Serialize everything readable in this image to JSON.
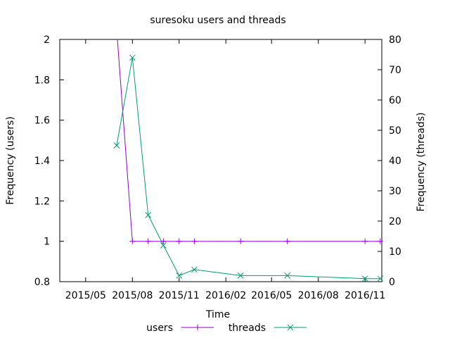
{
  "chart_data": {
    "type": "line",
    "title": "suresoku users and threads",
    "xlabel": "Time",
    "ylabel_left": "Frequency (users)",
    "ylabel_right": "Frequency (threads)",
    "x_ticks": [
      "2015/05",
      "2015/08",
      "2015/11",
      "2016/02",
      "2016/05",
      "2016/08",
      "2016/11"
    ],
    "x_range": [
      "2015-03-11",
      "2016-12-04"
    ],
    "y_left_range": [
      0.8,
      2
    ],
    "y_left_ticks": [
      "0.8",
      "1",
      "1.2",
      "1.4",
      "1.6",
      "1.8",
      "2"
    ],
    "y_right_range": [
      0,
      80
    ],
    "y_right_ticks": [
      "0",
      "10",
      "20",
      "30",
      "40",
      "50",
      "60",
      "70",
      "80"
    ],
    "grid": false,
    "legend_position": "bottom-center",
    "series": [
      {
        "name": "users",
        "axis": "left",
        "color": "#9400d3",
        "marker": "plus",
        "x": [
          "2015-07-01",
          "2015-08-01",
          "2015-09-01",
          "2015-10-01",
          "2015-11-01",
          "2015-12-01",
          "2016-03-01",
          "2016-06-01",
          "2016-11-01",
          "2016-12-01"
        ],
        "values": [
          2.05,
          1,
          1,
          1,
          1,
          1,
          1,
          1,
          1,
          1
        ]
      },
      {
        "name": "threads",
        "axis": "right",
        "color": "#009e73",
        "marker": "cross",
        "x": [
          "2015-07-01",
          "2015-08-01",
          "2015-09-01",
          "2015-10-01",
          "2015-11-01",
          "2015-12-01",
          "2016-03-01",
          "2016-06-01",
          "2016-11-01",
          "2016-12-01"
        ],
        "values": [
          45,
          74,
          22,
          12,
          2,
          4,
          2,
          2,
          1,
          1
        ]
      }
    ]
  }
}
